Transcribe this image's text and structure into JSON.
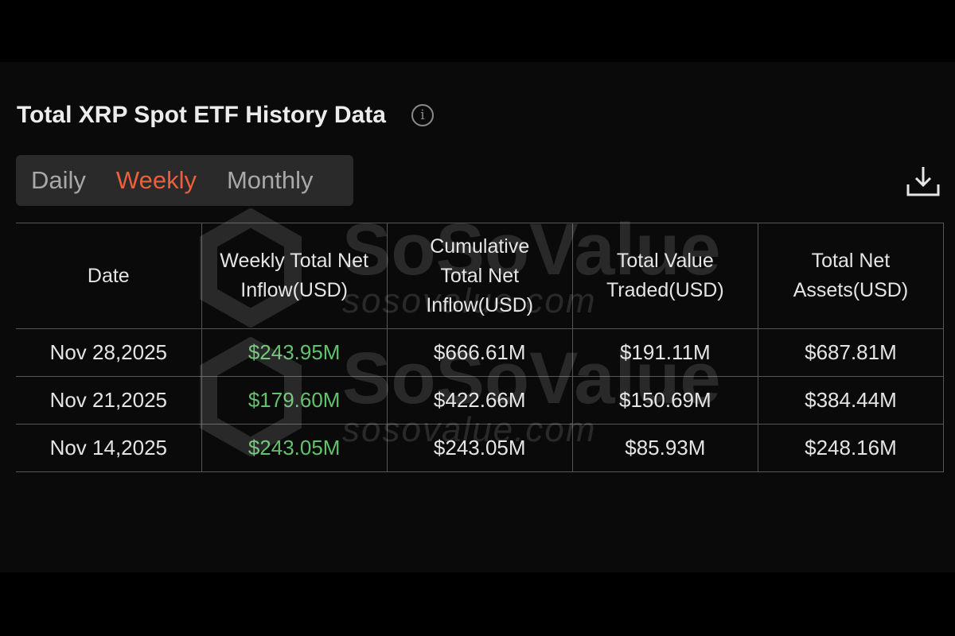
{
  "header": {
    "title": "Total XRP Spot ETF History Data",
    "info_icon": "info-circle-icon"
  },
  "tabs": [
    {
      "label": "Daily",
      "active": false
    },
    {
      "label": "Weekly",
      "active": true
    },
    {
      "label": "Monthly",
      "active": false
    }
  ],
  "toolbar": {
    "download_icon": "download-icon"
  },
  "colors": {
    "accent": "#e8603c",
    "positive": "#62c26c",
    "background": "#0a0a0a"
  },
  "table": {
    "columns": [
      "Date",
      "Weekly Total Net Inflow(USD)",
      "Cumulative Total Net Inflow(USD)",
      "Total Value Traded(USD)",
      "Total Net Assets(USD)"
    ],
    "rows": [
      [
        "Nov 28,2025",
        "$243.95M",
        "$666.61M",
        "$191.11M",
        "$687.81M"
      ],
      [
        "Nov 21,2025",
        "$179.60M",
        "$422.66M",
        "$150.69M",
        "$384.44M"
      ],
      [
        "Nov 14,2025",
        "$243.05M",
        "$243.05M",
        "$85.93M",
        "$248.16M"
      ]
    ]
  },
  "watermark": {
    "brand": "SoSoValue",
    "domain": "sosovalue.com"
  }
}
